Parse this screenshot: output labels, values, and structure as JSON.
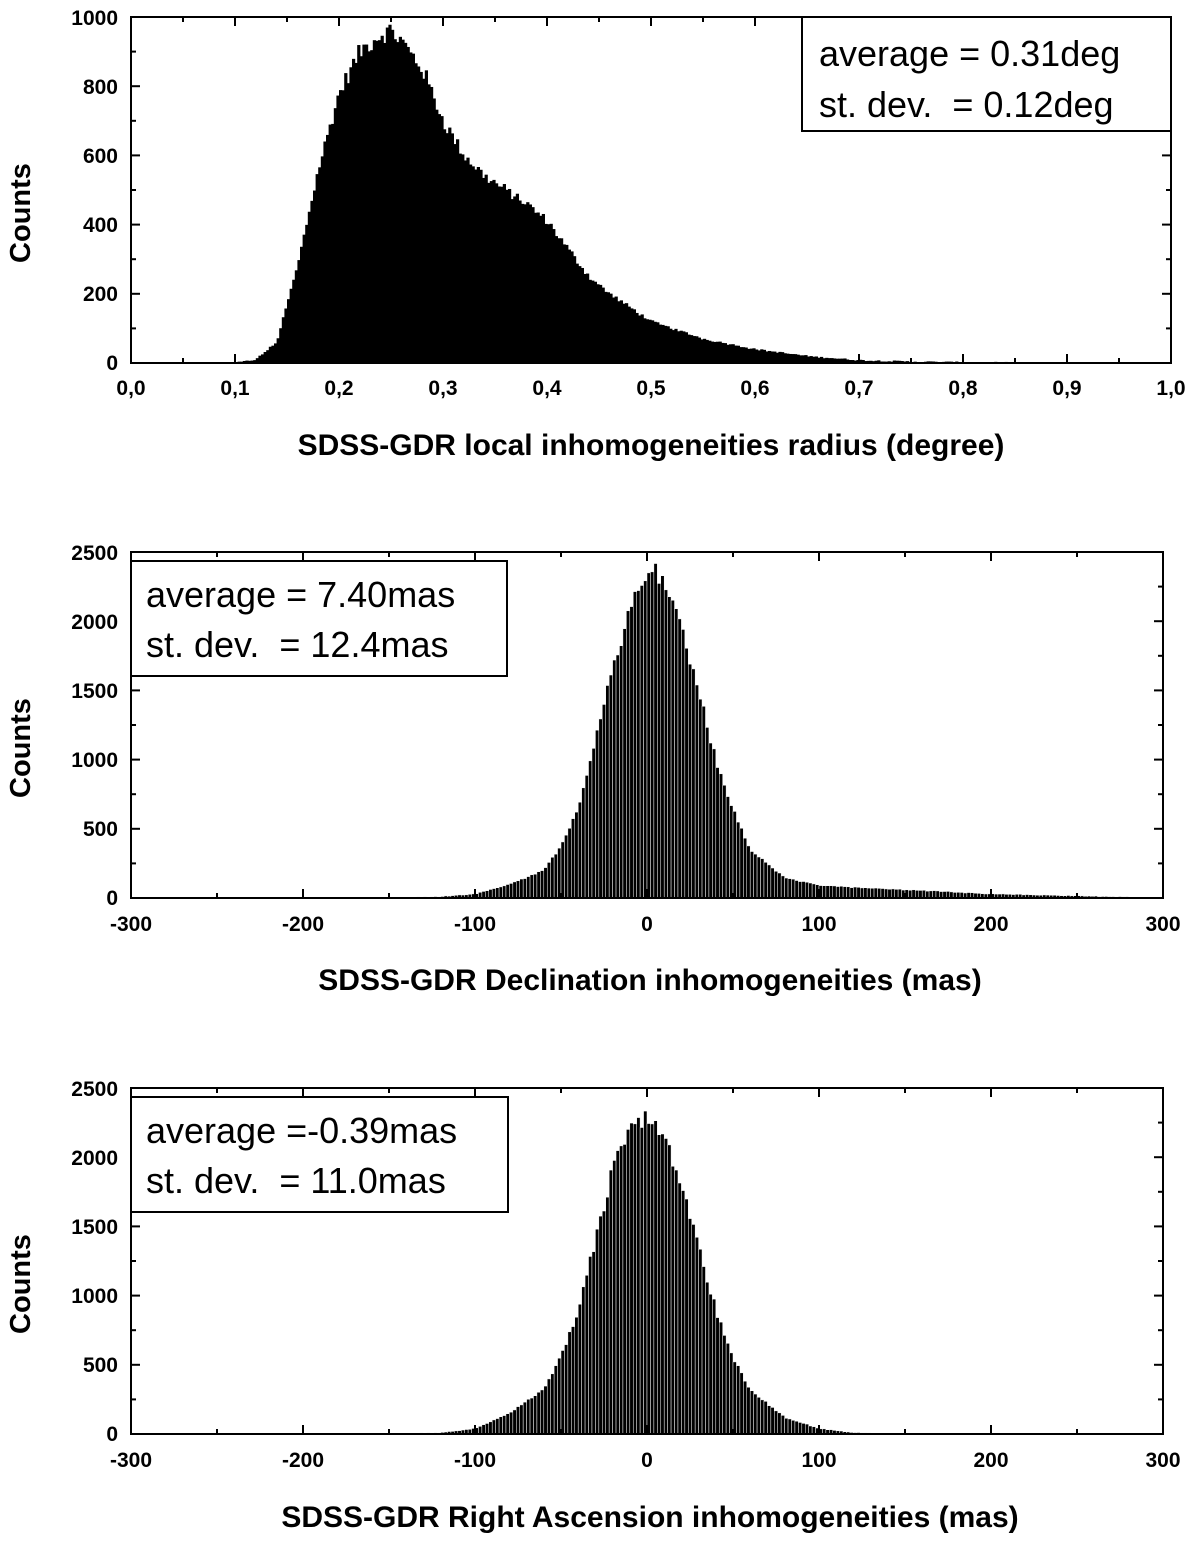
{
  "chart_data": [
    {
      "type": "histogram",
      "title": "",
      "xlabel": "SDSS-GDR local inhomogeneities radius (degree)",
      "ylabel": "Counts",
      "xlim": [
        0.0,
        1.0
      ],
      "ylim": [
        0,
        1000
      ],
      "xticks": [
        "0,0",
        "0,1",
        "0,2",
        "0,3",
        "0,4",
        "0,5",
        "0,6",
        "0,7",
        "0,8",
        "0,9",
        "1,0"
      ],
      "yticks": [
        "0",
        "200",
        "400",
        "600",
        "800",
        "1000"
      ],
      "legend": {
        "position": "top-right",
        "lines": [
          "average = 0.31deg",
          "st. dev.  = 0.12deg"
        ]
      },
      "x": [
        0.1,
        0.12,
        0.14,
        0.16,
        0.18,
        0.2,
        0.22,
        0.24,
        0.25,
        0.26,
        0.28,
        0.3,
        0.32,
        0.34,
        0.36,
        0.38,
        0.4,
        0.42,
        0.44,
        0.46,
        0.48,
        0.5,
        0.55,
        0.6,
        0.65,
        0.7,
        0.75,
        0.8,
        0.85,
        0.9,
        1.0
      ],
      "values": [
        0,
        10,
        60,
        280,
        560,
        780,
        900,
        950,
        960,
        930,
        850,
        700,
        600,
        540,
        500,
        460,
        410,
        330,
        250,
        200,
        160,
        120,
        70,
        40,
        20,
        8,
        4,
        2,
        1,
        0,
        0
      ]
    },
    {
      "type": "histogram",
      "title": "",
      "xlabel": "SDSS-GDR Declination inhomogeneities (mas)",
      "ylabel": "Counts",
      "xlim": [
        -300,
        300
      ],
      "ylim": [
        0,
        2500
      ],
      "xticks": [
        "-300",
        "-200",
        "-100",
        "0",
        "100",
        "200",
        "300"
      ],
      "yticks": [
        "0",
        "500",
        "1000",
        "1500",
        "2000",
        "2500"
      ],
      "legend": {
        "position": "top-left",
        "lines": [
          "average = 7.40mas",
          "st. dev.  = 12.4mas"
        ]
      },
      "x": [
        -160,
        -120,
        -100,
        -80,
        -60,
        -50,
        -40,
        -30,
        -20,
        -10,
        0,
        5,
        10,
        20,
        30,
        40,
        50,
        60,
        80,
        100,
        150,
        200,
        250,
        290
      ],
      "values": [
        0,
        10,
        30,
        100,
        200,
        380,
        650,
        1150,
        1650,
        2100,
        2330,
        2370,
        2300,
        1950,
        1500,
        1000,
        640,
        350,
        150,
        90,
        60,
        30,
        15,
        5
      ]
    },
    {
      "type": "histogram",
      "title": "",
      "xlabel": "SDSS-GDR Right Ascension inhomogeneities (mas)",
      "ylabel": "Counts",
      "xlim": [
        -300,
        300
      ],
      "ylim": [
        0,
        2500
      ],
      "xticks": [
        "-300",
        "-200",
        "-100",
        "0",
        "100",
        "200",
        "300"
      ],
      "yticks": [
        "0",
        "500",
        "1000",
        "1500",
        "2000",
        "2500"
      ],
      "legend": {
        "position": "top-left",
        "lines": [
          "average =-0.39mas",
          "st. dev.  = 11.0mas"
        ]
      },
      "x": [
        -160,
        -120,
        -100,
        -80,
        -60,
        -50,
        -40,
        -30,
        -20,
        -10,
        0,
        10,
        20,
        30,
        40,
        50,
        60,
        80,
        100,
        120,
        150
      ],
      "values": [
        0,
        10,
        40,
        150,
        320,
        560,
        900,
        1400,
        1900,
        2200,
        2300,
        2150,
        1800,
        1350,
        900,
        560,
        320,
        120,
        40,
        10,
        0
      ]
    }
  ]
}
